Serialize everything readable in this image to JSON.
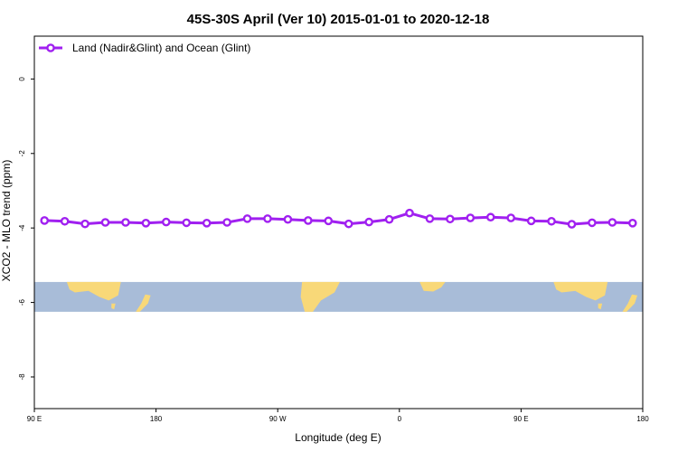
{
  "chart_data": {
    "type": "line",
    "title": "45S-30S April (Ver 10)   2015-01-01 to 2020-12-18",
    "xlabel": "Longitude (deg E)",
    "ylabel": "XCO2 - MLO trend (ppm)",
    "x_ticks": [
      {
        "pos": 0,
        "label": "90 E"
      },
      {
        "pos": 90,
        "label": "180"
      },
      {
        "pos": 180,
        "label": "90 W"
      },
      {
        "pos": 270,
        "label": "0"
      },
      {
        "pos": 360,
        "label": "90 E"
      },
      {
        "pos": 450,
        "label": "180"
      }
    ],
    "y_ticks": [
      0,
      -2,
      -4,
      -6,
      -8
    ],
    "xlim": [
      0,
      450
    ],
    "ylim": [
      -8.85,
      1.15
    ],
    "grid": false,
    "legend_position": "top-left",
    "series": [
      {
        "name": "Land (Nadir&Glint) and Ocean (Glint)",
        "color": "#a020f0",
        "x": [
          7.5,
          22.5,
          37.5,
          52.5,
          67.5,
          82.5,
          97.5,
          112.5,
          127.5,
          142.5,
          157.5,
          172.5,
          187.5,
          202.5,
          217.5,
          232.5,
          247.5,
          262.5,
          277.5,
          292.5,
          307.5,
          322.5,
          337.5,
          352.5,
          367.5,
          382.5,
          397.5,
          412.5,
          427.5,
          442.5
        ],
        "values": [
          -3.8,
          -3.82,
          -3.89,
          -3.85,
          -3.85,
          -3.87,
          -3.84,
          -3.86,
          -3.87,
          -3.85,
          -3.75,
          -3.75,
          -3.77,
          -3.8,
          -3.81,
          -3.89,
          -3.84,
          -3.77,
          -3.6,
          -3.75,
          -3.76,
          -3.73,
          -3.71,
          -3.73,
          -3.81,
          -3.82,
          -3.9,
          -3.86,
          -3.85,
          -3.87
        ]
      }
    ],
    "map_strip": {
      "y_range": [
        -6.25,
        -5.45
      ],
      "ocean_color": "#a8bcd8",
      "land_color": "#f8d878"
    }
  }
}
